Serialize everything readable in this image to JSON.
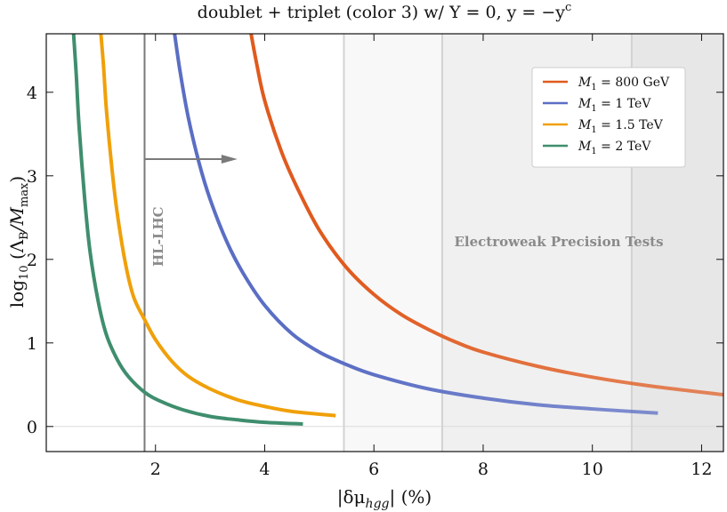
{
  "chart_data": {
    "type": "line",
    "title": "doublet + triplet (color 3) w/ Y = 0,  y = −y",
    "title_superscript": "c",
    "xlabel": "|δμ",
    "xlabel_subscript": "hgg",
    "xlabel_suffix": "| (%)",
    "ylabel": "log",
    "ylabel_sub1": "10",
    "ylabel_mid": " (Λ",
    "ylabel_sub2": "B",
    "ylabel_mid2": "/M",
    "ylabel_sub3": "max",
    "ylabel_end": ")",
    "xlim": [
      0.0,
      12.4
    ],
    "ylim": [
      -0.3,
      4.7
    ],
    "x_ticks": [
      2,
      4,
      6,
      8,
      10,
      12
    ],
    "y_ticks": [
      0,
      1,
      2,
      3,
      4
    ],
    "grid": false,
    "legend_position": "top-right",
    "series": [
      {
        "name": "M₁ = 800 GeV",
        "name_main": "M",
        "name_sub": "1",
        "name_rest": " = 800 GeV",
        "color": "#e05a1e",
        "x": [
          3.75,
          3.85,
          4.0,
          4.3,
          4.6,
          5.0,
          5.5,
          6.0,
          6.5,
          7.0,
          7.5,
          8.0,
          9.0,
          10.0,
          11.0,
          12.4
        ],
        "y": [
          4.7,
          4.35,
          3.9,
          3.3,
          2.85,
          2.35,
          1.9,
          1.58,
          1.34,
          1.16,
          1.01,
          0.89,
          0.72,
          0.59,
          0.49,
          0.38
        ]
      },
      {
        "name": "M₁ = 1 TeV",
        "name_main": "M",
        "name_sub": "1",
        "name_rest": " = 1 TeV",
        "color": "#5b6ec4",
        "x": [
          2.35,
          2.45,
          2.6,
          2.8,
          3.0,
          3.3,
          3.6,
          4.0,
          4.5,
          5.0,
          5.5,
          6.0,
          7.0,
          8.0,
          9.0,
          10.0,
          11.2
        ],
        "y": [
          4.7,
          4.25,
          3.7,
          3.15,
          2.72,
          2.22,
          1.84,
          1.45,
          1.11,
          0.89,
          0.74,
          0.62,
          0.45,
          0.34,
          0.26,
          0.21,
          0.16
        ]
      },
      {
        "name": "M₁ = 1.5 TeV",
        "name_main": "M",
        "name_sub": "1",
        "name_rest": " = 1.5 TeV",
        "color": "#f0a00a",
        "x": [
          1.0,
          1.05,
          1.1,
          1.2,
          1.3,
          1.45,
          1.6,
          1.8,
          2.0,
          2.3,
          2.6,
          3.0,
          3.5,
          4.0,
          4.5,
          5.3
        ],
        "y": [
          4.7,
          4.3,
          3.8,
          3.1,
          2.55,
          1.95,
          1.55,
          1.28,
          1.04,
          0.78,
          0.6,
          0.45,
          0.32,
          0.24,
          0.18,
          0.13
        ]
      },
      {
        "name": "M₁ = 2 TeV",
        "name_main": "M",
        "name_sub": "1",
        "name_rest": " = 2 TeV",
        "color": "#3f8e6e",
        "x": [
          0.5,
          0.55,
          0.6,
          0.7,
          0.8,
          0.95,
          1.1,
          1.3,
          1.5,
          1.8,
          2.1,
          2.5,
          3.0,
          3.5,
          4.0,
          4.7
        ],
        "y": [
          4.7,
          4.2,
          3.6,
          2.75,
          2.1,
          1.5,
          1.1,
          0.8,
          0.6,
          0.41,
          0.3,
          0.2,
          0.12,
          0.08,
          0.05,
          0.03
        ]
      }
    ],
    "shaded_regions": [
      {
        "x0": 5.45,
        "x1": 7.25,
        "color": "#f8f8f8"
      },
      {
        "x0": 7.25,
        "x1": 10.72,
        "color": "#f0f0f0"
      },
      {
        "x0": 10.72,
        "x1": 12.4,
        "color": "#e7e7e7"
      }
    ],
    "boundary_lines": [
      5.45,
      7.25,
      10.72
    ],
    "hl_lhc_x": 1.8,
    "arrow": {
      "x0": 1.8,
      "x1": 3.5,
      "y": 3.2
    },
    "annotations": {
      "hl_lhc": "HL-LHC",
      "ewpt": "Electroweak Precision Tests"
    }
  }
}
